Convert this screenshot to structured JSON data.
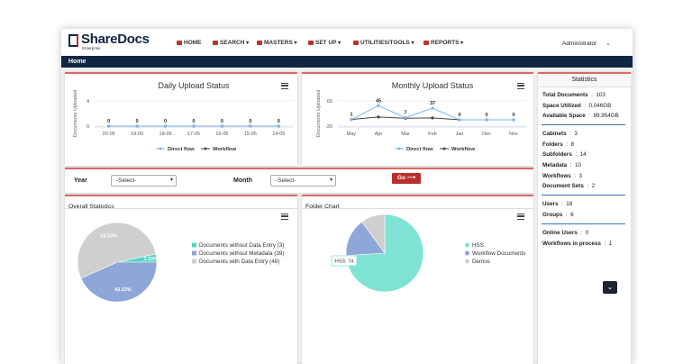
{
  "header": {
    "logo": "ShareDocs",
    "logo_sub": "Enterprise",
    "menu": [
      "HOME",
      "SEARCH",
      "MASTERS",
      "SET UP",
      "UTILITIES/TOOLS",
      "REPORTS"
    ],
    "user": "Administrator"
  },
  "breadcrumb": "Home",
  "daily_chart": {
    "type": "line",
    "title": "Daily Upload Status",
    "y_label": "Documents Uploaded",
    "categories": [
      "20-05",
      "19-05",
      "18-05",
      "17-05",
      "16-05",
      "15-05",
      "14-05"
    ],
    "series": [
      {
        "name": "Direct flow",
        "color": "#7cb5ec",
        "values": [
          0,
          0,
          0,
          0,
          0,
          0,
          0
        ],
        "data_labels": true
      },
      {
        "name": "Workflow",
        "color": "#434348",
        "values": [
          0,
          0,
          0,
          0,
          0,
          0,
          0
        ]
      }
    ],
    "ylim": [
      0,
      4
    ],
    "yticks": [
      0,
      4
    ],
    "grid": true
  },
  "monthly_chart": {
    "type": "line",
    "title": "Monthly Upload Status",
    "y_label": "Documents Uploaded",
    "categories": [
      "May",
      "Apr",
      "Mar",
      "Feb",
      "Jan",
      "Dec",
      "Nov"
    ],
    "series": [
      {
        "name": "Direct flow",
        "color": "#7cb5ec",
        "values": [
          1,
          45,
          7,
          37,
          0,
          0,
          0
        ],
        "data_labels": true
      },
      {
        "name": "Workflow",
        "color": "#434348",
        "values": [
          1,
          9,
          5,
          6,
          0,
          0,
          0
        ]
      }
    ],
    "ylim": [
      -20,
      60
    ],
    "yticks": [
      -20,
      60
    ],
    "grid": true
  },
  "filters": {
    "year_label": "Year",
    "year_select": "-Select-",
    "month_label": "Month",
    "month_select": "-Select-",
    "go": "Go"
  },
  "overall_statistics": {
    "type": "pie",
    "title": "Overall Statistics",
    "categories": [
      "Documents without Data Entry (3)",
      "Documents without Metadata (39)",
      "Documents with Data Entry (48)"
    ],
    "values": [
      3.33,
      43.33,
      53.33
    ],
    "value_labels": [
      "3.33%",
      "43.33%",
      "53.33%"
    ],
    "colors": [
      "#4fd8c4",
      "#8ea6d8",
      "#cfcfcf"
    ]
  },
  "folder_chart": {
    "type": "pie",
    "title": "Folder Chart",
    "categories": [
      "HSS",
      "Workflow Documents",
      "Demos"
    ],
    "values": [
      74,
      16,
      10
    ],
    "colors": [
      "#7fe3d4",
      "#8ea6d8",
      "#cfcfcf"
    ],
    "tooltip": "HSS: 74"
  },
  "statistics": {
    "title": "Statistics",
    "groups": [
      [
        {
          "label": "Total Documents",
          "value": "103"
        },
        {
          "label": "Space Utilized",
          "value": "0.046GB"
        },
        {
          "label": "Available Space",
          "value": "99.954GB"
        }
      ],
      [
        {
          "label": "Cabinets",
          "value": "3"
        },
        {
          "label": "Folders",
          "value": "8"
        },
        {
          "label": "Subfolders",
          "value": "14"
        },
        {
          "label": "Metadata",
          "value": "10"
        },
        {
          "label": "Workflows",
          "value": "3"
        },
        {
          "label": "Document Sets",
          "value": "2"
        }
      ],
      [
        {
          "label": "Users",
          "value": "18"
        },
        {
          "label": "Groups",
          "value": "6"
        }
      ],
      [
        {
          "label": "Online Users",
          "value": "0"
        },
        {
          "label": "Workflows in process",
          "value": "1"
        }
      ]
    ]
  }
}
